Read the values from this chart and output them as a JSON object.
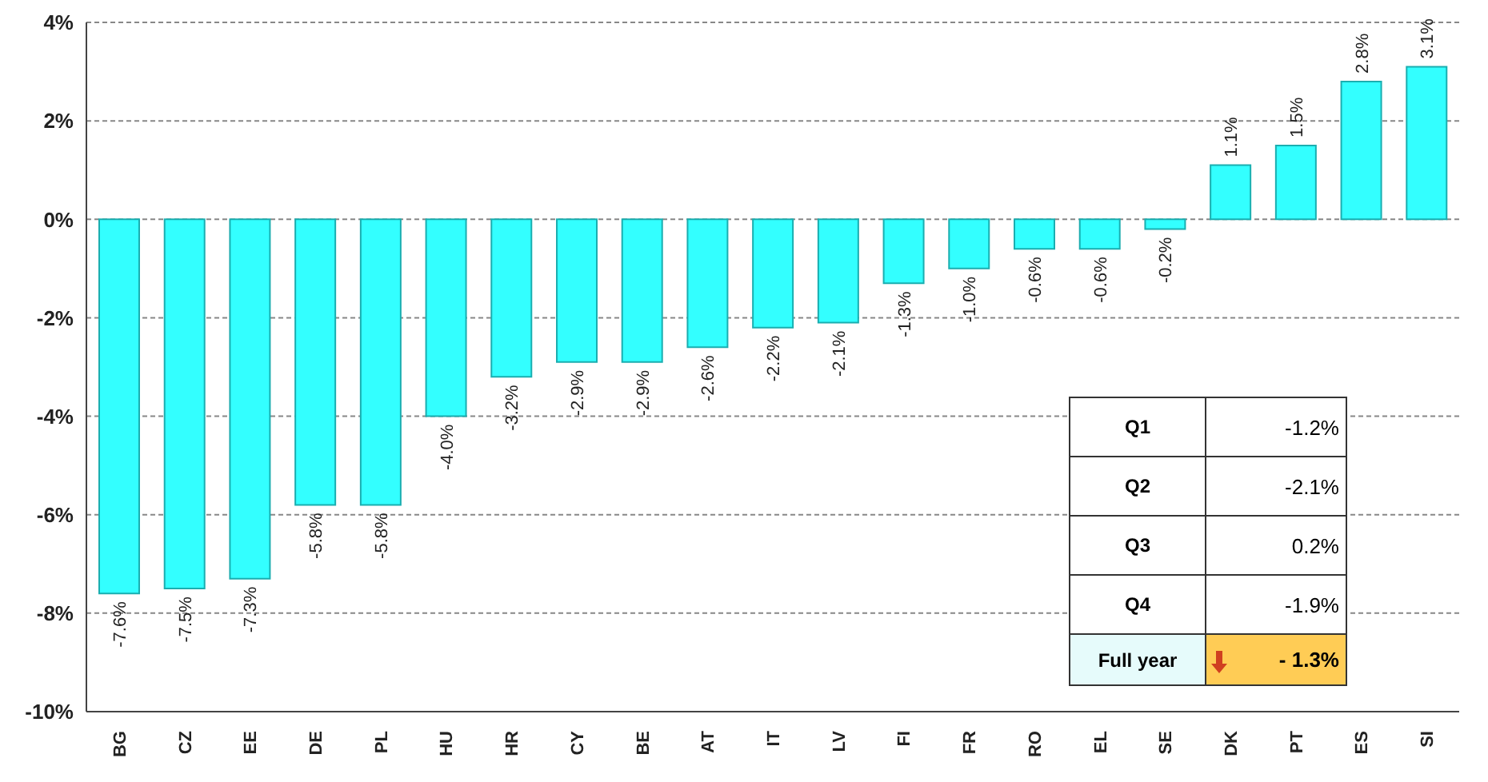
{
  "chart_data": {
    "type": "bar",
    "categories": [
      "BG",
      "CZ",
      "EE",
      "DE",
      "PL",
      "HU",
      "HR",
      "CY",
      "BE",
      "AT",
      "IT",
      "LV",
      "FI",
      "FR",
      "RO",
      "EL",
      "SE",
      "DK",
      "PT",
      "ES",
      "SI"
    ],
    "values": [
      -7.6,
      -7.5,
      -7.3,
      -5.8,
      -5.8,
      -4.0,
      -3.2,
      -2.9,
      -2.9,
      -2.6,
      -2.2,
      -2.1,
      -1.3,
      -1.0,
      -0.6,
      -0.6,
      -0.2,
      1.1,
      1.5,
      2.8,
      3.1
    ],
    "value_labels": [
      "-7.6%",
      "-7.5%",
      "-7.3%",
      "-5.8%",
      "-5.8%",
      "-4.0%",
      "-3.2%",
      "-2.9%",
      "-2.9%",
      "-2.6%",
      "-2.2%",
      "-2.1%",
      "-1.3%",
      "-1.0%",
      "-0.6%",
      "-0.6%",
      "-0.2%",
      "1.1%",
      "1.5%",
      "2.8%",
      "3.1%"
    ],
    "color": "#33ffff",
    "ylim": [
      -10,
      4
    ],
    "yticks": [
      {
        "value": -10,
        "label": "-10%"
      },
      {
        "value": -8,
        "label": "-8%"
      },
      {
        "value": -6,
        "label": "-6%"
      },
      {
        "value": -4,
        "label": "-4%"
      },
      {
        "value": -2,
        "label": "-2%"
      },
      {
        "value": 0,
        "label": "0%"
      },
      {
        "value": 2,
        "label": "2%"
      },
      {
        "value": 4,
        "label": "4%"
      }
    ],
    "grid": "y",
    "annotations": [
      "Q1",
      "-1.2%",
      "Q2",
      "-2.1%",
      "Q3",
      "0.2%",
      "Q4",
      "-1.9%",
      "Full year",
      "- 1.3%"
    ]
  }
}
